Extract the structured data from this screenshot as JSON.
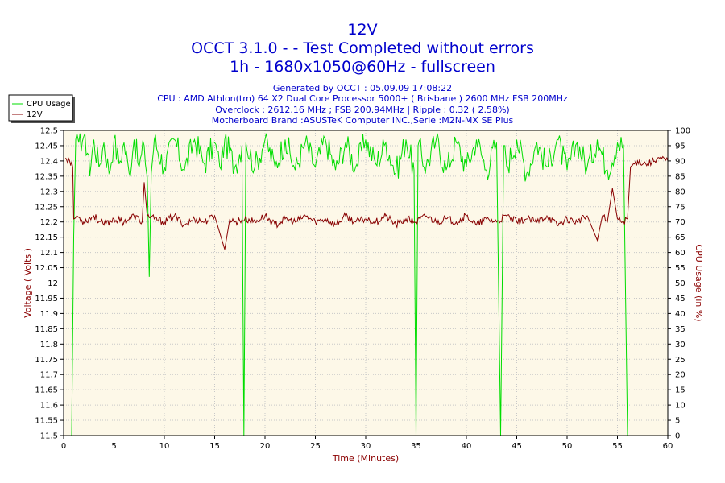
{
  "header": {
    "title": "12V",
    "subtitle1": "OCCT 3.1.0 -  - Test Completed without errors",
    "subtitle2": "1h - 1680x1050@60Hz - fullscreen"
  },
  "info": {
    "generated": "Generated by OCCT : 05.09.09 17:08:22",
    "cpu": "CPU : AMD Athlon(tm) 64 X2 Dual Core Processor 5000+ ( Brisbane ) 2600 MHz FSB 200MHz",
    "overclock": "Overclock : 2612.16 MHz ; FSB 200.94MHz | Ripple : 0.32 ( 2.58%)",
    "motherboard": "Motherboard Brand :ASUSTeK Computer INC.,Serie :M2N-MX SE Plus"
  },
  "colors": {
    "plot_bg": "#fdf8e8",
    "grid": "#c8c8c8",
    "cpu_series": "#00dd00",
    "volt_series": "#880000",
    "ref_line": "#0000cc",
    "axis_title": "#8b0000"
  },
  "chart_data": {
    "type": "line",
    "title": "12V",
    "xlabel": "Time (Minutes)",
    "ylabel": "Voltage ( Volts )",
    "y2label": "CPU Usage (in %)",
    "xlim": [
      0,
      60
    ],
    "ylim": [
      11.5,
      12.5
    ],
    "y2lim": [
      0,
      100
    ],
    "x_ticks": [
      0,
      5,
      10,
      15,
      20,
      25,
      30,
      35,
      40,
      45,
      50,
      55,
      60
    ],
    "y_ticks": [
      "12.5",
      "12.45",
      "12.4",
      "12.35",
      "12.3",
      "12.25",
      "12.2",
      "12.15",
      "12.1",
      "12.05",
      "12",
      "11.95",
      "11.9",
      "11.85",
      "11.8",
      "11.75",
      "11.7",
      "11.65",
      "11.6",
      "11.55",
      "11.5"
    ],
    "y2_ticks": [
      100,
      95,
      90,
      85,
      80,
      75,
      70,
      65,
      60,
      55,
      50,
      45,
      40,
      35,
      30,
      25,
      20,
      15,
      10,
      5,
      0
    ],
    "grid": true,
    "legend_position": "top-left",
    "reference_line": 12.0,
    "series": [
      {
        "name": "CPU Usage",
        "axis": "right",
        "points": [
          [
            0.8,
            0
          ],
          [
            1.0,
            65
          ],
          [
            1.2,
            97
          ],
          [
            1.5,
            96
          ],
          [
            2.0,
            98
          ],
          [
            2.5,
            92
          ],
          [
            2.6,
            85
          ],
          [
            3.0,
            97
          ],
          [
            3.5,
            88
          ],
          [
            4.0,
            96
          ],
          [
            4.5,
            86
          ],
          [
            5.0,
            97
          ],
          [
            5.5,
            89
          ],
          [
            6.0,
            96
          ],
          [
            6.5,
            86
          ],
          [
            7.0,
            97
          ],
          [
            7.5,
            88
          ],
          [
            8.0,
            95
          ],
          [
            8.3,
            85
          ],
          [
            8.5,
            52
          ],
          [
            8.7,
            86
          ],
          [
            9.0,
            97
          ],
          [
            10.0,
            88
          ],
          [
            11.0,
            97
          ],
          [
            12.0,
            87
          ],
          [
            13.0,
            97
          ],
          [
            14.0,
            89
          ],
          [
            15.0,
            96
          ],
          [
            15.5,
            88
          ],
          [
            16.0,
            97
          ],
          [
            17.0,
            88
          ],
          [
            17.7,
            95
          ],
          [
            17.9,
            0
          ],
          [
            18.1,
            96
          ],
          [
            19.0,
            88
          ],
          [
            20.0,
            97
          ],
          [
            21.0,
            88
          ],
          [
            22.0,
            97
          ],
          [
            23.0,
            87
          ],
          [
            24.0,
            96
          ],
          [
            25.0,
            88
          ],
          [
            26.0,
            97
          ],
          [
            27.0,
            87
          ],
          [
            28.0,
            96
          ],
          [
            29.0,
            88
          ],
          [
            30.0,
            97
          ],
          [
            31.0,
            89
          ],
          [
            32.0,
            96
          ],
          [
            33.0,
            86
          ],
          [
            34.0,
            97
          ],
          [
            34.8,
            87
          ],
          [
            35.0,
            0
          ],
          [
            35.2,
            95
          ],
          [
            36.0,
            88
          ],
          [
            37.0,
            97
          ],
          [
            38.0,
            87
          ],
          [
            39.0,
            96
          ],
          [
            40.0,
            88
          ],
          [
            41.0,
            97
          ],
          [
            42.0,
            87
          ],
          [
            43.0,
            96
          ],
          [
            43.4,
            0
          ],
          [
            43.7,
            95
          ],
          [
            44.0,
            88
          ],
          [
            45.0,
            97
          ],
          [
            46.0,
            86
          ],
          [
            47.0,
            96
          ],
          [
            48.0,
            88
          ],
          [
            49.0,
            97
          ],
          [
            50.0,
            87
          ],
          [
            51.0,
            96
          ],
          [
            52.0,
            88
          ],
          [
            53.0,
            97
          ],
          [
            54.0,
            87
          ],
          [
            55.0,
            96
          ],
          [
            55.6,
            95
          ],
          [
            56.0,
            0
          ]
        ]
      },
      {
        "name": "12V",
        "axis": "left",
        "points": [
          [
            0.2,
            12.41
          ],
          [
            0.6,
            12.4
          ],
          [
            0.9,
            12.38
          ],
          [
            1.0,
            12.21
          ],
          [
            1.3,
            12.22
          ],
          [
            2.0,
            12.2
          ],
          [
            3.0,
            12.22
          ],
          [
            4.0,
            12.19
          ],
          [
            5.0,
            12.21
          ],
          [
            6.0,
            12.2
          ],
          [
            7.0,
            12.22
          ],
          [
            7.8,
            12.2
          ],
          [
            8.0,
            12.33
          ],
          [
            8.3,
            12.22
          ],
          [
            9.0,
            12.21
          ],
          [
            10.0,
            12.2
          ],
          [
            11.0,
            12.22
          ],
          [
            12.0,
            12.19
          ],
          [
            13.0,
            12.21
          ],
          [
            14.0,
            12.2
          ],
          [
            15.0,
            12.22
          ],
          [
            16.0,
            12.11
          ],
          [
            16.5,
            12.21
          ],
          [
            17.0,
            12.2
          ],
          [
            18.0,
            12.21
          ],
          [
            19.0,
            12.2
          ],
          [
            20.0,
            12.22
          ],
          [
            21.0,
            12.19
          ],
          [
            22.0,
            12.21
          ],
          [
            23.0,
            12.2
          ],
          [
            24.0,
            12.22
          ],
          [
            25.0,
            12.2
          ],
          [
            26.0,
            12.21
          ],
          [
            27.0,
            12.19
          ],
          [
            28.0,
            12.22
          ],
          [
            29.0,
            12.2
          ],
          [
            30.0,
            12.21
          ],
          [
            31.0,
            12.2
          ],
          [
            32.0,
            12.22
          ],
          [
            33.0,
            12.19
          ],
          [
            34.0,
            12.21
          ],
          [
            35.0,
            12.2
          ],
          [
            36.0,
            12.22
          ],
          [
            37.0,
            12.2
          ],
          [
            38.0,
            12.21
          ],
          [
            39.0,
            12.2
          ],
          [
            40.0,
            12.22
          ],
          [
            41.0,
            12.19
          ],
          [
            42.0,
            12.21
          ],
          [
            43.0,
            12.2
          ],
          [
            44.0,
            12.22
          ],
          [
            45.0,
            12.2
          ],
          [
            46.0,
            12.21
          ],
          [
            47.0,
            12.2
          ],
          [
            48.0,
            12.22
          ],
          [
            49.0,
            12.19
          ],
          [
            50.0,
            12.21
          ],
          [
            51.0,
            12.2
          ],
          [
            52.0,
            12.22
          ],
          [
            53.0,
            12.14
          ],
          [
            53.5,
            12.22
          ],
          [
            54.0,
            12.2
          ],
          [
            54.5,
            12.31
          ],
          [
            55.0,
            12.21
          ],
          [
            55.5,
            12.2
          ],
          [
            56.0,
            12.21
          ],
          [
            56.3,
            12.38
          ],
          [
            57.0,
            12.4
          ],
          [
            58.0,
            12.39
          ],
          [
            59.0,
            12.41
          ],
          [
            60.0,
            12.4
          ]
        ]
      }
    ]
  }
}
